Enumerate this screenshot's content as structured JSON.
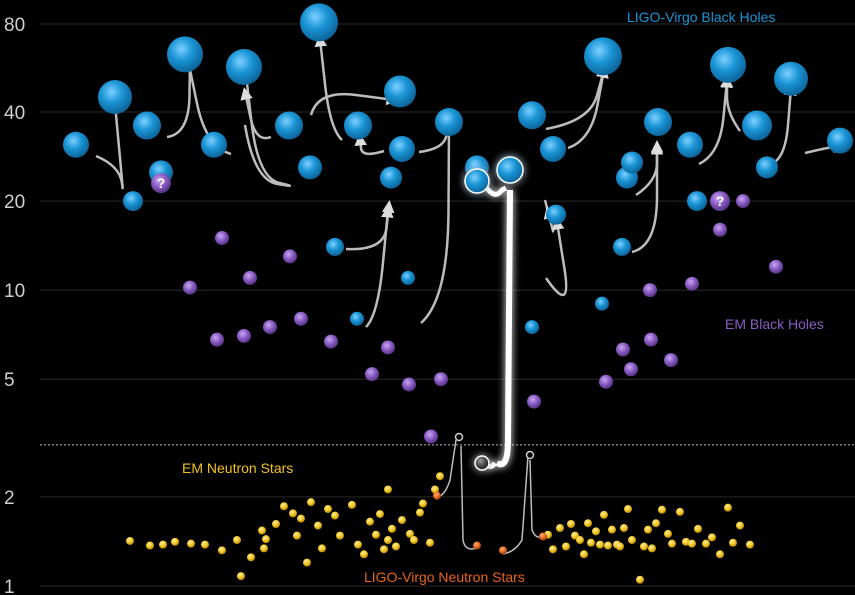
{
  "chart_data": {
    "type": "scatter",
    "title": "",
    "xlabel": "",
    "ylabel": "",
    "y_scale": "log",
    "ylim": [
      1,
      100
    ],
    "yticks": [
      1,
      2,
      5,
      10,
      20,
      40,
      80
    ],
    "ytick_labels": [
      "1",
      "2",
      "5",
      "10",
      "20",
      "40",
      "80"
    ],
    "x_axis_shown": false,
    "grid": true,
    "colors": {
      "ligo_bh": "#1a95d6",
      "em_bh": "#8a5bc4",
      "em_ns": "#f2c21b",
      "ligo_ns": "#e8651a",
      "merger_arrow": "#d9d9d9",
      "divider": "#bbbbbb"
    },
    "divider_y": 3,
    "labels": {
      "ligo_bh": "LIGO-Virgo Black Holes",
      "em_bh": "EM Black Holes",
      "em_ns": "EM Neutron Stars",
      "ligo_ns": "LIGO-Virgo Neutron Stars",
      "unknown_marker": "?"
    },
    "series": [
      {
        "name": "LIGO-Virgo Black Holes",
        "points": [
          [
            1,
            31
          ],
          [
            2,
            20
          ],
          [
            3,
            45
          ],
          [
            4,
            36
          ],
          [
            5,
            25
          ],
          [
            6,
            63
          ],
          [
            7,
            31
          ],
          [
            8,
            57
          ],
          [
            9,
            36
          ],
          [
            10,
            26
          ],
          [
            11,
            81
          ],
          [
            12,
            36
          ],
          [
            13,
            47
          ],
          [
            14,
            30
          ],
          [
            15,
            37
          ],
          [
            16,
            14
          ],
          [
            17,
            8
          ],
          [
            18,
            24
          ],
          [
            19,
            26
          ],
          [
            20,
            11
          ],
          [
            21,
            39
          ],
          [
            22,
            30
          ],
          [
            23,
            18
          ],
          [
            24,
            7.5
          ],
          [
            25,
            62
          ],
          [
            26,
            24
          ],
          [
            27,
            37
          ],
          [
            28,
            14
          ],
          [
            29,
            27
          ],
          [
            30,
            58
          ],
          [
            31,
            36
          ],
          [
            32,
            26
          ],
          [
            33,
            52
          ],
          [
            34,
            31
          ],
          [
            35,
            20
          ],
          [
            36,
            32
          ],
          [
            37,
            9
          ]
        ]
      },
      {
        "name": "EM Black Holes",
        "points": [
          [
            1,
            23
          ],
          [
            2,
            10.2
          ],
          [
            3,
            15
          ],
          [
            4,
            6.8
          ],
          [
            5,
            11
          ],
          [
            6,
            7
          ],
          [
            7,
            7.5
          ],
          [
            8,
            13
          ],
          [
            9,
            8
          ],
          [
            10,
            6.7
          ],
          [
            11,
            5.2
          ],
          [
            12,
            6.4
          ],
          [
            13,
            4.8
          ],
          [
            14,
            5
          ],
          [
            15,
            3.2
          ],
          [
            16,
            4.2
          ],
          [
            17,
            4.9
          ],
          [
            18,
            6.3
          ],
          [
            19,
            5.4
          ],
          [
            20,
            10
          ],
          [
            21,
            6.8
          ],
          [
            22,
            5.8
          ],
          [
            23,
            10.5
          ],
          [
            24,
            20
          ],
          [
            25,
            12
          ],
          [
            26,
            16
          ]
        ]
      },
      {
        "name": "EM Neutron Stars",
        "points": [
          [
            1,
            1.42
          ],
          [
            2,
            1.37
          ],
          [
            3,
            1.38
          ],
          [
            4,
            1.41
          ],
          [
            5,
            1.39
          ],
          [
            6,
            1.38
          ],
          [
            7,
            1.32
          ],
          [
            8,
            1.43
          ],
          [
            9,
            1.25
          ],
          [
            10,
            1.54
          ],
          [
            11,
            1.34
          ],
          [
            12,
            1.44
          ],
          [
            13,
            1.62
          ],
          [
            14,
            1.86
          ],
          [
            15,
            1.76
          ],
          [
            16,
            1.48
          ],
          [
            17,
            1.69
          ],
          [
            18,
            1.2
          ],
          [
            19,
            1.92
          ],
          [
            20,
            1.6
          ],
          [
            21,
            1.34
          ],
          [
            22,
            1.82
          ],
          [
            23,
            1.73
          ],
          [
            24,
            1.48
          ],
          [
            25,
            1.08
          ],
          [
            26,
            1.88
          ],
          [
            27,
            1.38
          ],
          [
            28,
            1.28
          ],
          [
            29,
            1.65
          ],
          [
            30,
            1.49
          ],
          [
            31,
            1.75
          ],
          [
            32,
            1.33
          ],
          [
            33,
            1.43
          ],
          [
            34,
            1.56
          ],
          [
            35,
            1.36
          ],
          [
            36,
            1.67
          ],
          [
            37,
            2.12
          ],
          [
            38,
            1.5
          ],
          [
            39,
            1.43
          ],
          [
            40,
            1.77
          ],
          [
            41,
            1.9
          ],
          [
            42,
            1.4
          ],
          [
            43,
            2.12
          ],
          [
            44,
            2.35
          ],
          [
            45,
            1.49
          ],
          [
            46,
            1.33
          ],
          [
            47,
            1.57
          ],
          [
            48,
            1.36
          ],
          [
            49,
            1.62
          ],
          [
            50,
            1.48
          ],
          [
            51,
            1.43
          ],
          [
            52,
            1.28
          ],
          [
            53,
            1.63
          ],
          [
            54,
            1.4
          ],
          [
            55,
            1.53
          ],
          [
            56,
            1.38
          ],
          [
            57,
            1.74
          ],
          [
            58,
            1.37
          ],
          [
            59,
            1.55
          ],
          [
            60,
            1.38
          ],
          [
            61,
            1.36
          ],
          [
            62,
            1.57
          ],
          [
            63,
            1.82
          ],
          [
            64,
            1.43
          ],
          [
            65,
            1.05
          ],
          [
            66,
            1.36
          ],
          [
            67,
            1.55
          ],
          [
            68,
            1.34
          ],
          [
            69,
            1.63
          ],
          [
            70,
            1.81
          ],
          [
            71,
            1.5
          ],
          [
            72,
            1.39
          ],
          [
            73,
            1.78
          ],
          [
            74,
            1.41
          ],
          [
            75,
            1.39
          ],
          [
            76,
            1.56
          ],
          [
            77,
            1.39
          ],
          [
            78,
            1.46
          ],
          [
            79,
            1.28
          ],
          [
            80,
            1.84
          ],
          [
            81,
            1.4
          ],
          [
            82,
            1.6
          ],
          [
            83,
            1.38
          ]
        ]
      },
      {
        "name": "LIGO-Virgo Neutron Stars",
        "points": [
          [
            1,
            2.02
          ],
          [
            2,
            1.37
          ],
          [
            3,
            1.32
          ],
          [
            4,
            1.47
          ]
        ]
      }
    ],
    "annotations": [
      {
        "text": "LIGO-Virgo Black Holes",
        "color": "#1a95d6",
        "position": "top-right"
      },
      {
        "text": "EM Black Holes",
        "color": "#8a5bc4",
        "position": "right"
      },
      {
        "text": "EM Neutron Stars",
        "color": "#f2c21b",
        "position": "lower-left"
      },
      {
        "text": "LIGO-Virgo Neutron Stars",
        "color": "#e8651a",
        "position": "bottom-center"
      }
    ]
  }
}
